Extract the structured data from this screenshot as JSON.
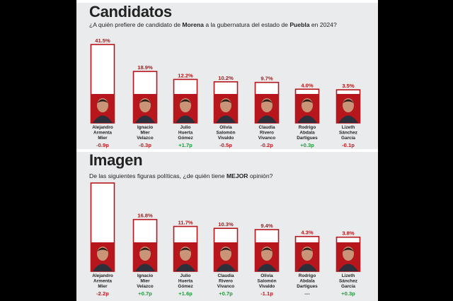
{
  "colors": {
    "bar_outline": "#b8161d",
    "photo_bg": "#b8161d",
    "neg": "#c0171f",
    "pos": "#1e9b3b",
    "neutral": "#555555"
  },
  "chart_data": [
    {
      "type": "bar",
      "title": "Candidatos",
      "question_parts": [
        {
          "text": "¿A quién prefiere de candidato de ",
          "bold": false
        },
        {
          "text": "Morena",
          "bold": true
        },
        {
          "text": " a la gubernatura del estado de ",
          "bold": false
        },
        {
          "text": "Puebla",
          "bold": true
        },
        {
          "text": " en 2024?",
          "bold": false
        }
      ],
      "categories": [
        [
          "Alejandro",
          "Armenta",
          "Mier"
        ],
        [
          "Ignacio",
          "Mier",
          "Velazco"
        ],
        [
          "Julio",
          "Huerta",
          "Gómez"
        ],
        [
          "Olivia",
          "Salomón",
          "Vivaldo"
        ],
        [
          "Claudia",
          "Rivero",
          "Vivanco"
        ],
        [
          "Rodrigo",
          "Abdala",
          "Dartigues"
        ],
        [
          "Lizeth",
          "Sánchez",
          "García"
        ]
      ],
      "values": [
        41.5,
        18.9,
        12.2,
        10.2,
        9.7,
        4.0,
        3.5
      ],
      "value_labels": [
        "41.5%",
        "18.9%",
        "12.2%",
        "10.2%",
        "9.7%",
        "4.0%",
        "3.5%"
      ],
      "changes": [
        "-0.9p",
        "-0.3p",
        "+1.7p",
        "-0.5p",
        "-0.2p",
        "+0.3p",
        "-0.1p"
      ]
    },
    {
      "type": "bar",
      "title": "Imagen",
      "question_parts": [
        {
          "text": "De las siguientes figuras políticas, ¿de quién tiene ",
          "bold": false
        },
        {
          "text": "MEJOR",
          "bold": true
        },
        {
          "text": " opinión?",
          "bold": false
        }
      ],
      "categories": [
        [
          "Alejandro",
          "Armenta",
          "Mier"
        ],
        [
          "Ignacio",
          "Mier",
          "Velazco"
        ],
        [
          "Julio",
          "Huerta",
          "Gómez"
        ],
        [
          "Claudia",
          "Rivero",
          "Vivanco"
        ],
        [
          "Olivia",
          "Salomón",
          "Vivaldo"
        ],
        [
          "Rodrigo",
          "Abdala",
          "Dartigues"
        ],
        [
          "Lizeth",
          "Sánchez",
          "García"
        ]
      ],
      "values": [
        43.7,
        16.8,
        11.7,
        10.3,
        9.4,
        4.3,
        3.8
      ],
      "value_labels": [
        "43.7%",
        "16.8%",
        "11.7%",
        "10.3%",
        "9.4%",
        "4.3%",
        "3.8%"
      ],
      "changes": [
        "-2.2p",
        "+0.7p",
        "+1.6p",
        "+0.7p",
        "-1.1p",
        "---",
        "+0.3p"
      ]
    }
  ]
}
